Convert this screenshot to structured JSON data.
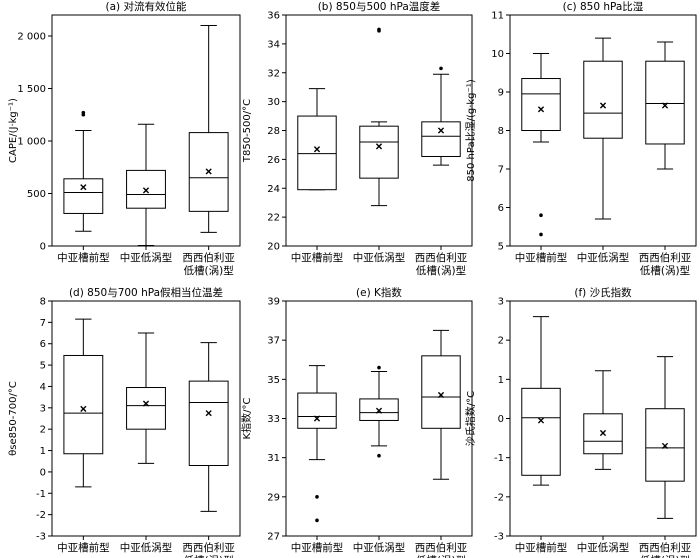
{
  "categories": [
    "中亚槽前型",
    "中亚低涡型",
    [
      "西西伯利亚",
      "低槽(涡)型"
    ]
  ],
  "chart_data": [
    {
      "type": "box",
      "title": "(a) 对流有效位能",
      "ylabel": "CAPE/(J·kg⁻¹)",
      "ylim": [
        0,
        2200
      ],
      "yticks": [
        0,
        500,
        1000,
        1500,
        2000
      ],
      "yticklabels": [
        "0",
        "500",
        "1 000",
        "1 500",
        "2 000"
      ],
      "boxes": [
        {
          "whisker_low": 140,
          "q1": 310,
          "median": 510,
          "q3": 640,
          "whisker_high": 1100,
          "mean": 560,
          "outliers": [
            1250,
            1270
          ]
        },
        {
          "whisker_low": 5,
          "q1": 360,
          "median": 490,
          "q3": 720,
          "whisker_high": 1160,
          "mean": 530,
          "outliers": []
        },
        {
          "whisker_low": 130,
          "q1": 330,
          "median": 650,
          "q3": 1080,
          "whisker_high": 2100,
          "mean": 710,
          "outliers": []
        }
      ]
    },
    {
      "type": "box",
      "title": "(b) 850与500 hPa温度差",
      "ylabel": "T850-500/°C",
      "ylim": [
        20,
        36
      ],
      "yticks": [
        20,
        22,
        24,
        26,
        28,
        30,
        32,
        34,
        36
      ],
      "yticklabels": [
        "20",
        "22",
        "24",
        "26",
        "28",
        "30",
        "32",
        "34",
        "36"
      ],
      "boxes": [
        {
          "whisker_low": 23.9,
          "q1": 23.9,
          "median": 26.4,
          "q3": 29.0,
          "whisker_high": 30.9,
          "mean": 26.7,
          "outliers": []
        },
        {
          "whisker_low": 22.8,
          "q1": 24.7,
          "median": 27.2,
          "q3": 28.3,
          "whisker_high": 28.6,
          "mean": 26.9,
          "outliers": [
            34.9,
            35.0
          ]
        },
        {
          "whisker_low": 25.6,
          "q1": 26.2,
          "median": 27.6,
          "q3": 28.6,
          "whisker_high": 31.9,
          "mean": 28.0,
          "outliers": [
            32.3
          ]
        }
      ]
    },
    {
      "type": "box",
      "title": "(c) 850 hPa比湿",
      "ylabel": "850 hPa比湿/(g·kg⁻¹)",
      "ylim": [
        5,
        11
      ],
      "yticks": [
        5,
        6,
        7,
        8,
        9,
        10,
        11
      ],
      "yticklabels": [
        "5",
        "6",
        "7",
        "8",
        "9",
        "10",
        "11"
      ],
      "boxes": [
        {
          "whisker_low": 7.7,
          "q1": 8.0,
          "median": 8.95,
          "q3": 9.35,
          "whisker_high": 10.0,
          "mean": 8.55,
          "outliers": [
            5.8,
            5.3
          ]
        },
        {
          "whisker_low": 5.7,
          "q1": 7.8,
          "median": 8.45,
          "q3": 9.8,
          "whisker_high": 10.4,
          "mean": 8.65,
          "outliers": []
        },
        {
          "whisker_low": 7.0,
          "q1": 7.65,
          "median": 8.7,
          "q3": 9.8,
          "whisker_high": 10.3,
          "mean": 8.65,
          "outliers": []
        }
      ]
    },
    {
      "type": "box",
      "title": "(d) 850与700 hPa假相当位温差",
      "ylabel": "θse850-700/°C",
      "ylim": [
        -3,
        8
      ],
      "yticks": [
        -3,
        -2,
        -1,
        0,
        1,
        2,
        3,
        4,
        5,
        6,
        7,
        8
      ],
      "yticklabels": [
        "-3",
        "-2",
        "-1",
        "0",
        "1",
        "2",
        "3",
        "4",
        "5",
        "6",
        "7",
        "8"
      ],
      "boxes": [
        {
          "whisker_low": -0.7,
          "q1": 0.85,
          "median": 2.75,
          "q3": 5.45,
          "whisker_high": 7.15,
          "mean": 2.95,
          "outliers": []
        },
        {
          "whisker_low": 0.4,
          "q1": 2.0,
          "median": 3.1,
          "q3": 3.95,
          "whisker_high": 6.5,
          "mean": 3.2,
          "outliers": []
        },
        {
          "whisker_low": -1.85,
          "q1": 0.3,
          "median": 3.25,
          "q3": 4.25,
          "whisker_high": 6.05,
          "mean": 2.75,
          "outliers": []
        }
      ]
    },
    {
      "type": "box",
      "title": "(e) K指数",
      "ylabel": "K指数/°C",
      "ylim": [
        27,
        39
      ],
      "yticks": [
        27,
        29,
        31,
        33,
        35,
        37,
        39
      ],
      "yticklabels": [
        "27",
        "29",
        "31",
        "33",
        "35",
        "37",
        "39"
      ],
      "boxes": [
        {
          "whisker_low": 30.9,
          "q1": 32.5,
          "median": 33.1,
          "q3": 34.3,
          "whisker_high": 35.7,
          "mean": 33.0,
          "outliers": [
            29.0,
            27.8
          ]
        },
        {
          "whisker_low": 31.6,
          "q1": 32.9,
          "median": 33.3,
          "q3": 34.0,
          "whisker_high": 35.4,
          "mean": 33.4,
          "outliers": [
            35.6,
            31.1
          ]
        },
        {
          "whisker_low": 29.9,
          "q1": 32.5,
          "median": 34.1,
          "q3": 36.2,
          "whisker_high": 37.5,
          "mean": 34.2,
          "outliers": []
        }
      ]
    },
    {
      "type": "box",
      "title": "(f) 沙氏指数",
      "ylabel": "沙氏指数/°C",
      "ylim": [
        -3,
        3
      ],
      "yticks": [
        -3,
        -2,
        -1,
        0,
        1,
        2,
        3
      ],
      "yticklabels": [
        "-3",
        "-2",
        "-1",
        "0",
        "1",
        "2",
        "3"
      ],
      "boxes": [
        {
          "whisker_low": -1.7,
          "q1": -1.45,
          "median": 0.02,
          "q3": 0.77,
          "whisker_high": 2.6,
          "mean": -0.05,
          "outliers": []
        },
        {
          "whisker_low": -1.3,
          "q1": -0.9,
          "median": -0.58,
          "q3": 0.12,
          "whisker_high": 1.22,
          "mean": -0.37,
          "outliers": []
        },
        {
          "whisker_low": -2.55,
          "q1": -1.6,
          "median": -0.75,
          "q3": 0.25,
          "whisker_high": 1.58,
          "mean": -0.7,
          "outliers": []
        }
      ]
    }
  ]
}
